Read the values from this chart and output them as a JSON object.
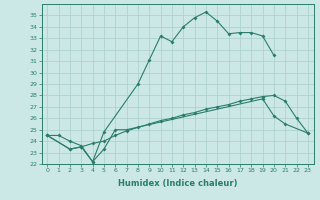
{
  "xlabel": "Humidex (Indice chaleur)",
  "color": "#2a7d6e",
  "bg_color": "#cce8e6",
  "grid_color": "#aacfcc",
  "ylim": [
    22,
    36
  ],
  "xlim": [
    -0.5,
    23.5
  ],
  "line1_x": [
    0,
    1,
    2,
    3,
    4,
    5,
    8,
    9,
    10,
    11,
    12,
    13,
    14,
    15,
    16,
    17,
    18,
    19,
    20
  ],
  "line1_y": [
    24.5,
    24.5,
    24.0,
    23.6,
    22.2,
    24.8,
    29.0,
    31.1,
    33.2,
    32.7,
    34.0,
    34.8,
    35.3,
    34.5,
    33.4,
    33.5,
    33.5,
    33.2,
    31.5
  ],
  "line2_x": [
    0,
    2,
    3,
    4,
    5,
    6,
    7,
    19,
    20,
    21,
    23
  ],
  "line2_y": [
    24.5,
    23.3,
    23.5,
    22.2,
    23.3,
    25.0,
    25.0,
    27.7,
    26.2,
    25.5,
    24.7
  ],
  "line3_x": [
    0,
    2,
    3,
    4,
    5,
    6,
    7,
    8,
    9,
    10,
    11,
    12,
    13,
    14,
    15,
    16,
    17,
    18,
    19,
    20,
    21,
    22,
    23
  ],
  "line3_y": [
    24.5,
    23.3,
    23.5,
    23.8,
    24.0,
    24.5,
    24.9,
    25.2,
    25.5,
    25.8,
    26.0,
    26.3,
    26.5,
    26.8,
    27.0,
    27.2,
    27.5,
    27.7,
    27.9,
    28.0,
    27.5,
    26.0,
    24.7
  ]
}
